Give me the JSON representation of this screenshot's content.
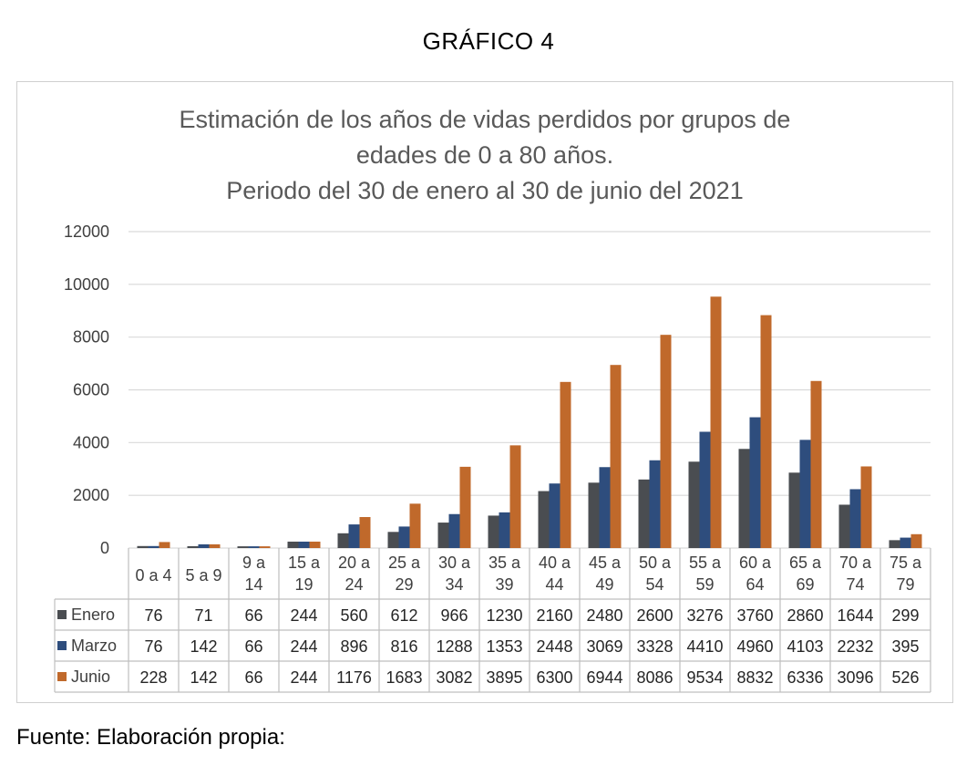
{
  "page_heading": "GRÁFICO 4",
  "source_note": "Fuente: Elaboración propia:",
  "colors": {
    "Enero": "#4a4d51",
    "Marzo": "#2e4d7d",
    "Junio": "#c0692b",
    "grid": "#d9d9d9",
    "text": "#404040"
  },
  "chart_data": {
    "type": "bar",
    "title": [
      "Estimación de los años de vidas perdidos por grupos de",
      "edades de 0 a 80 años.",
      "Periodo del 30 de enero al 30 de junio del 2021"
    ],
    "xlabel": "",
    "ylabel": "",
    "ylim": [
      0,
      12000
    ],
    "yticks": [
      "0",
      "2000",
      "4000",
      "6000",
      "8000",
      "10000",
      "12000"
    ],
    "grid": true,
    "legend": "data-table",
    "categories": [
      [
        "0 a 4"
      ],
      [
        "5 a 9"
      ],
      [
        "9 a",
        "14"
      ],
      [
        "15 a",
        "19"
      ],
      [
        "20 a",
        "24"
      ],
      [
        "25 a",
        "29"
      ],
      [
        "30 a",
        "34"
      ],
      [
        "35 a",
        "39"
      ],
      [
        "40 a",
        "44"
      ],
      [
        "45 a",
        "49"
      ],
      [
        "50 a",
        "54"
      ],
      [
        "55 a",
        "59"
      ],
      [
        "60 a",
        "64"
      ],
      [
        "65 a",
        "69"
      ],
      [
        "70 a",
        "74"
      ],
      [
        "75 a",
        "79"
      ]
    ],
    "series": [
      {
        "name": "Enero",
        "values": [
          76,
          71,
          66,
          244,
          560,
          612,
          966,
          1230,
          2160,
          2480,
          2600,
          3276,
          3760,
          2860,
          1644,
          299
        ]
      },
      {
        "name": "Marzo",
        "values": [
          76,
          142,
          66,
          244,
          896,
          816,
          1288,
          1353,
          2448,
          3069,
          3328,
          4410,
          4960,
          4103,
          2232,
          395
        ]
      },
      {
        "name": "Junio",
        "values": [
          228,
          142,
          66,
          244,
          1176,
          1683,
          3082,
          3895,
          6300,
          6944,
          8086,
          9534,
          8832,
          6336,
          3096,
          526
        ]
      }
    ]
  }
}
